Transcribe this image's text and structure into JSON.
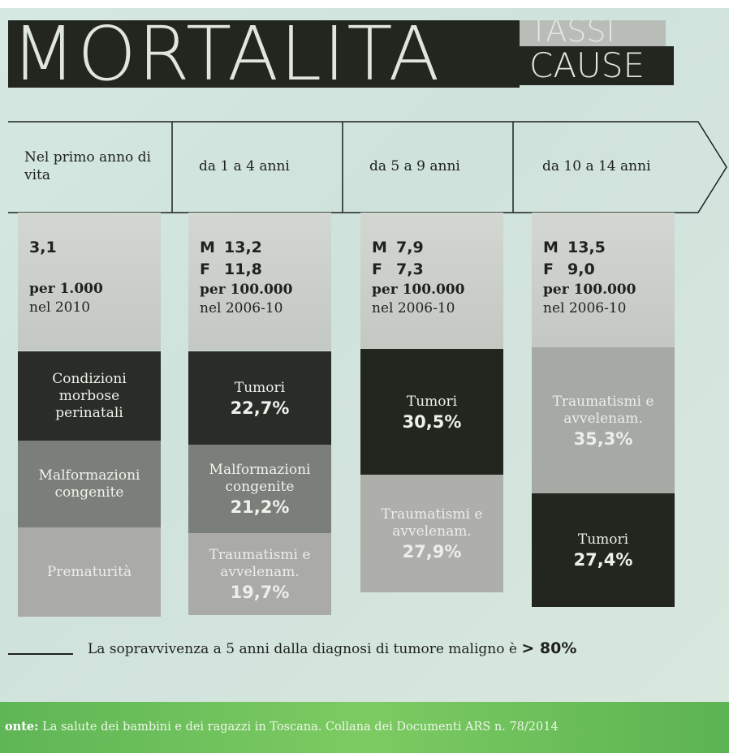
{
  "header": {
    "title": "MORTALITA",
    "tags": [
      "TASSI",
      "CAUSE"
    ]
  },
  "columns": [
    {
      "label": "Nel primo anno di vita",
      "rates": [
        {
          "value": "3,1"
        }
      ],
      "unit": "per 1.000",
      "period": "nel 2010",
      "causes": [
        {
          "label": "Condizioni morbose perinatali"
        },
        {
          "label": "Malformazioni congenite"
        },
        {
          "label": "Prematurità"
        }
      ]
    },
    {
      "label": "da 1 a 4 anni",
      "rates": [
        {
          "sex": "M",
          "value": "13,2"
        },
        {
          "sex": "F",
          "value": "11,8"
        }
      ],
      "unit": "per 100.000",
      "period": "nel 2006-10",
      "causes": [
        {
          "label": "Tumori",
          "share": "22,7%"
        },
        {
          "label": "Malformazioni congenite",
          "share": "21,2%"
        },
        {
          "label": "Traumatismi e avvelenam.",
          "share": "19,7%"
        }
      ]
    },
    {
      "label": "da 5 a 9 anni",
      "rates": [
        {
          "sex": "M",
          "value": "7,9"
        },
        {
          "sex": "F",
          "value": "7,3"
        }
      ],
      "unit": "per 100.000",
      "period": "nel 2006-10",
      "causes": [
        {
          "label": "Tumori",
          "share": "30,5%"
        },
        {
          "label": "Traumatismi e avvelenam.",
          "share": "27,9%"
        }
      ]
    },
    {
      "label": "da 10 a 14 anni",
      "rates": [
        {
          "sex": "M",
          "value": "13,5"
        },
        {
          "sex": "F",
          "value": "9,0"
        }
      ],
      "unit": "per 100.000",
      "period": "nel 2006-10",
      "causes": [
        {
          "label": "Traumatismi e avvelenam.",
          "share": "35,3%"
        },
        {
          "label": "Tumori",
          "share": "27,4%"
        }
      ]
    }
  ],
  "note": {
    "text": "La sopravvivenza a 5 anni dalla diagnosi di tumore maligno è",
    "highlight": "> 80%"
  },
  "source": {
    "prefix": "onte:",
    "text": "La salute dei bambini e dei ragazzi in Toscana. Collana dei Documenti ARS n. 78/2014"
  }
}
